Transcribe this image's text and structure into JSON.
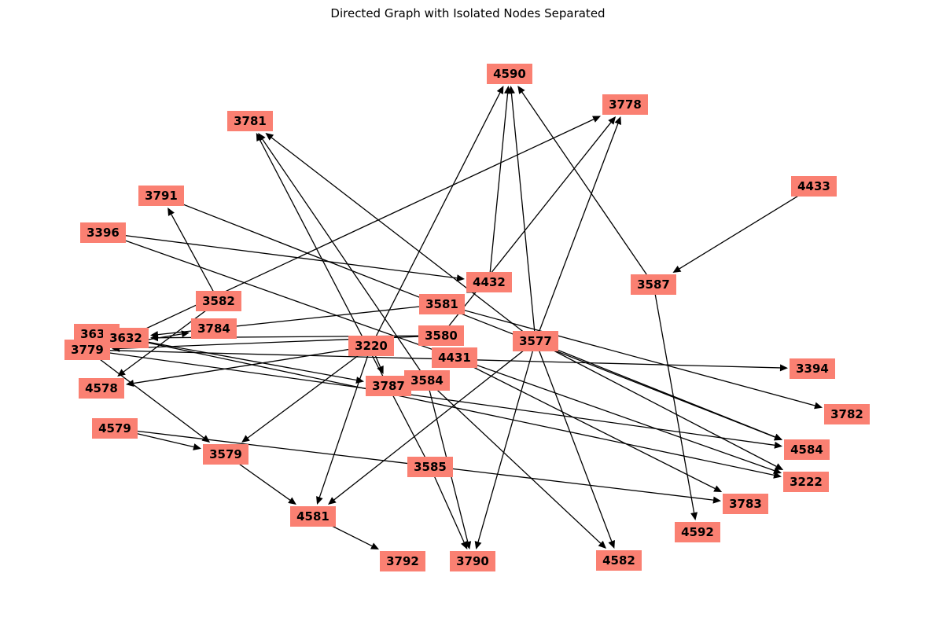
{
  "title": "Directed Graph with Isolated Nodes Separated",
  "graph": {
    "type": "directed",
    "nodes": [
      "4590",
      "3778",
      "3781",
      "4433",
      "3791",
      "3396",
      "4432",
      "3587",
      "3582",
      "3581",
      "3633",
      "3632",
      "3784",
      "3779",
      "3580",
      "3220",
      "3577",
      "4431",
      "3394",
      "4578",
      "3787",
      "3584",
      "3782",
      "4579",
      "3579",
      "4584",
      "3585",
      "3222",
      "3783",
      "4581",
      "4592",
      "3792",
      "3790",
      "4582"
    ],
    "edges": [
      [
        "4432",
        "4590"
      ],
      [
        "4432",
        "3581"
      ],
      [
        "3587",
        "4590"
      ],
      [
        "3587",
        "4592"
      ],
      [
        "4433",
        "3587"
      ],
      [
        "3577",
        "4590"
      ],
      [
        "3577",
        "3778"
      ],
      [
        "3577",
        "3781"
      ],
      [
        "3577",
        "3790"
      ],
      [
        "3577",
        "4582"
      ],
      [
        "3577",
        "4581"
      ],
      [
        "3577",
        "4584"
      ],
      [
        "3577",
        "3222"
      ],
      [
        "3220",
        "4590"
      ],
      [
        "3220",
        "3787"
      ],
      [
        "3220",
        "4581"
      ],
      [
        "3220",
        "3579"
      ],
      [
        "3220",
        "4578"
      ],
      [
        "3580",
        "3778"
      ],
      [
        "3580",
        "3632"
      ],
      [
        "3580",
        "3779"
      ],
      [
        "3632",
        "3778"
      ],
      [
        "3632",
        "3787"
      ],
      [
        "3632",
        "3222"
      ],
      [
        "3581",
        "3632"
      ],
      [
        "3581",
        "3782"
      ],
      [
        "3582",
        "3791"
      ],
      [
        "3582",
        "4578"
      ],
      [
        "3584",
        "3781"
      ],
      [
        "3584",
        "3790"
      ],
      [
        "3584",
        "4582"
      ],
      [
        "3585",
        "3781"
      ],
      [
        "3585",
        "3790"
      ],
      [
        "3396",
        "4432"
      ],
      [
        "3396",
        "3222"
      ],
      [
        "3791",
        "4584"
      ],
      [
        "3779",
        "3784"
      ],
      [
        "3779",
        "3394"
      ],
      [
        "3779",
        "4584"
      ],
      [
        "3779",
        "3579"
      ],
      [
        "4579",
        "3579"
      ],
      [
        "4579",
        "3783"
      ],
      [
        "3579",
        "4581"
      ],
      [
        "4581",
        "3792"
      ],
      [
        "4431",
        "3783"
      ]
    ]
  }
}
